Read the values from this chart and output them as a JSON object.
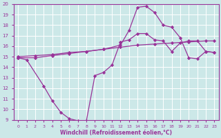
{
  "xlabel": "Windchill (Refroidissement éolien,°C)",
  "background_color": "#cce8e8",
  "line_color": "#993399",
  "grid_color": "#ffffff",
  "xlim": [
    -0.5,
    23.5
  ],
  "ylim": [
    9,
    20
  ],
  "xticks": [
    0,
    1,
    2,
    3,
    4,
    5,
    6,
    7,
    8,
    9,
    10,
    11,
    12,
    13,
    14,
    15,
    16,
    17,
    18,
    19,
    20,
    21,
    22,
    23
  ],
  "yticks": [
    9,
    10,
    11,
    12,
    13,
    14,
    15,
    16,
    17,
    18,
    19,
    20
  ],
  "line1_x": [
    0,
    1,
    3,
    4,
    5,
    6,
    7,
    8,
    9,
    10,
    11,
    12,
    13,
    14,
    15,
    16,
    17,
    18,
    19,
    20,
    21,
    22,
    23
  ],
  "line1_y": [
    14.9,
    14.7,
    12.2,
    10.8,
    9.7,
    9.1,
    8.9,
    8.9,
    13.2,
    13.5,
    14.2,
    16.4,
    16.6,
    17.2,
    17.2,
    16.6,
    16.5,
    15.5,
    16.3,
    16.5,
    16.5,
    15.5,
    15.4
  ],
  "line2_x": [
    0,
    2,
    4,
    6,
    8,
    10,
    12,
    14,
    16,
    18,
    20,
    22,
    23
  ],
  "line2_y": [
    15.0,
    15.1,
    15.2,
    15.4,
    15.5,
    15.7,
    15.9,
    16.1,
    16.2,
    16.3,
    16.4,
    16.5,
    16.5
  ],
  "line3_x": [
    0,
    2,
    4,
    6,
    8,
    10,
    12,
    13,
    14,
    15,
    16,
    17,
    18,
    19,
    20,
    21,
    22,
    23
  ],
  "line3_y": [
    14.9,
    14.9,
    15.1,
    15.3,
    15.5,
    15.7,
    16.1,
    17.5,
    19.7,
    19.8,
    19.2,
    18.0,
    17.8,
    16.8,
    14.9,
    14.8,
    15.5,
    15.4
  ]
}
